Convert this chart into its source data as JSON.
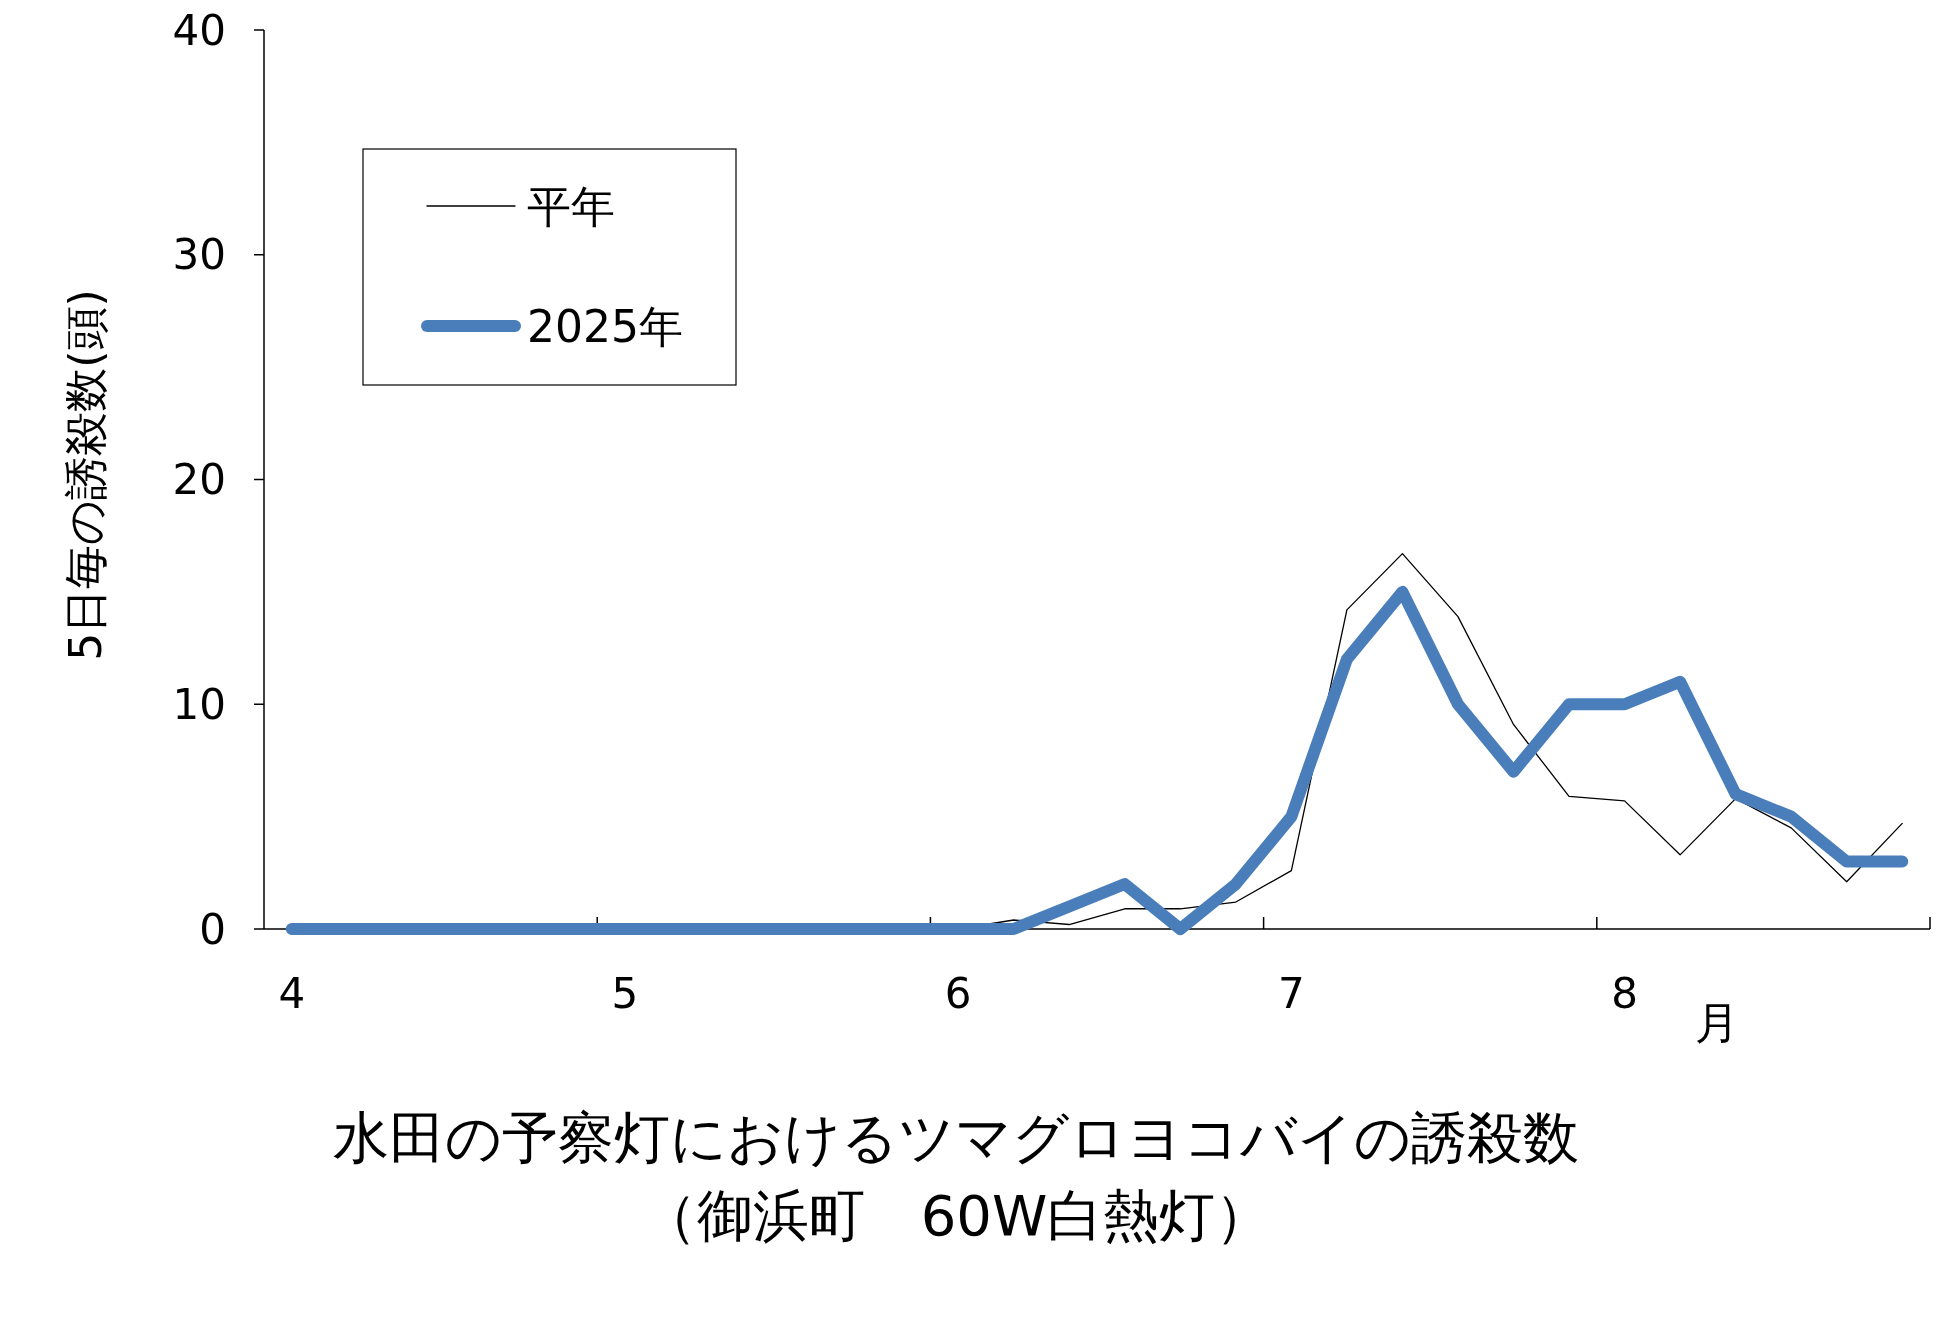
{
  "chart_data": {
    "type": "line",
    "title": "水田の予察灯におけるツマグロヨコバイの誘殺数",
    "subtitle": "（御浜町　60W白熱灯）",
    "xlabel": "月",
    "ylabel": "5日毎の誘殺数(頭)",
    "categories": [
      "4",
      null,
      null,
      null,
      null,
      null,
      "5",
      null,
      null,
      null,
      null,
      null,
      "6",
      null,
      null,
      null,
      null,
      null,
      "7",
      null,
      null,
      null,
      null,
      null,
      "8",
      null,
      null,
      null,
      null,
      null
    ],
    "series": [
      {
        "name": "平年",
        "color": "#000000",
        "values": [
          null,
          null,
          null,
          null,
          null,
          null,
          null,
          null,
          null,
          null,
          null,
          null,
          0,
          0.4,
          0.2,
          0.9,
          0.9,
          1.2,
          2.6,
          14.2,
          16.7,
          13.9,
          9.1,
          5.9,
          5.7,
          3.3,
          5.8,
          4.5,
          2.1,
          4.7
        ]
      },
      {
        "name": "2025年",
        "color": "#4a7ebb",
        "values": [
          0,
          0,
          0,
          0,
          0,
          0,
          0,
          0,
          0,
          0,
          0,
          0,
          0,
          0,
          1,
          2,
          0,
          2,
          5,
          12,
          15,
          10,
          7,
          10,
          10,
          11,
          6,
          5,
          3,
          3
        ]
      }
    ],
    "ylim": [
      0,
      40
    ],
    "yticks": [
      0,
      10,
      20,
      30,
      40
    ],
    "grid": false,
    "legend": "top left",
    "line_style": "solid"
  }
}
